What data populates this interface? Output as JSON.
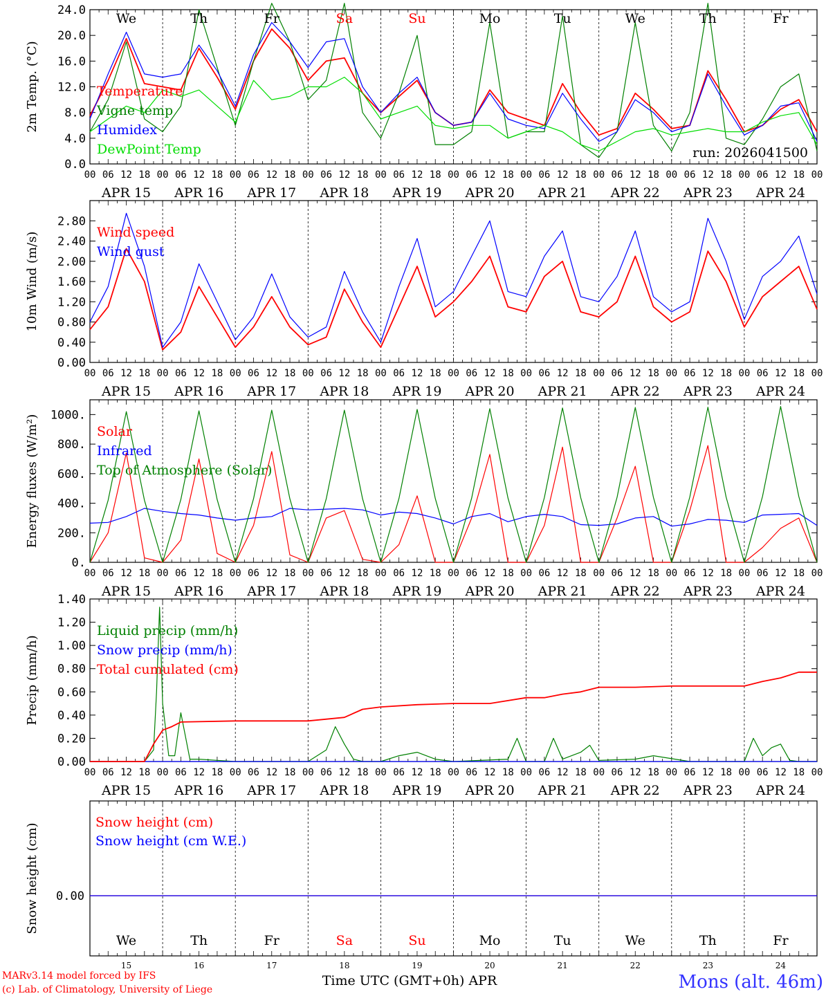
{
  "chart_data": [
    {
      "type": "line",
      "ylabel": "2m Temp. (°C)",
      "ylim": [
        0,
        24
      ],
      "yticks": [
        "0.0",
        "4.0",
        "8.0",
        "12.0",
        "16.0",
        "20.0",
        "24.0"
      ],
      "run_label": "run: 2026041500",
      "series": [
        {
          "name": "Temperature",
          "color": "#ff0000",
          "x": [
            0,
            6,
            12,
            18,
            24,
            30,
            36,
            42,
            48,
            54,
            60,
            66,
            72,
            78,
            84,
            90,
            96,
            102,
            108,
            114,
            120,
            126,
            132,
            138,
            144,
            150,
            156,
            162,
            168,
            174,
            180,
            186,
            192,
            198,
            204,
            210,
            216,
            222,
            228,
            234,
            240
          ],
          "values": [
            7.5,
            13,
            19.5,
            12.5,
            12,
            11.5,
            18,
            13.5,
            8.5,
            16,
            21,
            18,
            13,
            16,
            16.5,
            11,
            8,
            10.5,
            13,
            8,
            6,
            6.5,
            11.5,
            8,
            7,
            6,
            12.5,
            8,
            4.5,
            5.5,
            11,
            8.5,
            5.5,
            6,
            14.5,
            10,
            5,
            6,
            8.5,
            10,
            5
          ]
        },
        {
          "name": "Vigne temp",
          "color": "#008000",
          "x": [
            0,
            6,
            12,
            18,
            24,
            30,
            36,
            42,
            48,
            54,
            60,
            66,
            72,
            78,
            84,
            90,
            96,
            102,
            108,
            114,
            120,
            126,
            132,
            138,
            144,
            150,
            156,
            162,
            168,
            174,
            180,
            186,
            192,
            198,
            204,
            210,
            216,
            222,
            228,
            234,
            240
          ],
          "values": [
            5,
            10,
            19,
            7,
            5,
            9,
            24,
            15,
            6,
            16,
            25,
            19,
            10,
            13,
            25,
            8,
            4,
            11,
            20,
            3,
            3,
            5,
            22,
            4,
            5,
            5,
            23,
            3,
            1,
            5,
            22,
            6,
            2,
            8,
            25,
            4,
            3,
            7,
            12,
            14,
            2
          ]
        },
        {
          "name": "Humidex",
          "color": "#0000ff",
          "x": [
            0,
            6,
            12,
            18,
            24,
            30,
            36,
            42,
            48,
            54,
            60,
            66,
            72,
            78,
            84,
            90,
            96,
            102,
            108,
            114,
            120,
            126,
            132,
            138,
            144,
            150,
            156,
            162,
            168,
            174,
            180,
            186,
            192,
            198,
            204,
            210,
            216,
            222,
            228,
            234,
            240
          ],
          "values": [
            7,
            14,
            20.5,
            14,
            13.5,
            14,
            18.5,
            14.5,
            9,
            17,
            22,
            19,
            15,
            19,
            19.5,
            12,
            8,
            11,
            13.5,
            8,
            6,
            6.5,
            11,
            7,
            6,
            5.5,
            11,
            7,
            3.5,
            5,
            10,
            8,
            5,
            6,
            14,
            9,
            4.5,
            6,
            9,
            9.5,
            3.5
          ]
        },
        {
          "name": "DewPoint Temp",
          "color": "#00dd00",
          "x": [
            0,
            6,
            12,
            18,
            24,
            30,
            36,
            42,
            48,
            54,
            60,
            66,
            72,
            78,
            84,
            90,
            96,
            102,
            108,
            114,
            120,
            126,
            132,
            138,
            144,
            150,
            156,
            162,
            168,
            174,
            180,
            186,
            192,
            198,
            204,
            210,
            216,
            222,
            228,
            234,
            240
          ],
          "values": [
            5,
            7,
            9,
            8,
            11.5,
            10.5,
            11.5,
            9,
            6.5,
            13,
            10,
            10.5,
            12,
            12,
            13.5,
            11,
            7,
            8,
            9,
            6,
            5.5,
            6,
            6,
            4,
            5,
            6,
            5,
            3,
            2,
            3.5,
            5,
            5.5,
            4.5,
            5,
            5.5,
            5,
            5,
            6.5,
            7.5,
            8,
            3
          ]
        }
      ]
    },
    {
      "type": "line",
      "ylabel": "10m Wind (m/s)",
      "ylim": [
        0,
        3.2
      ],
      "yticks": [
        "0.00",
        "0.40",
        "0.80",
        "1.20",
        "1.60",
        "2.00",
        "2.40",
        "2.80"
      ],
      "series": [
        {
          "name": "Wind speed",
          "color": "#ff0000",
          "x": [
            0,
            6,
            12,
            18,
            24,
            30,
            36,
            42,
            48,
            54,
            60,
            66,
            72,
            78,
            84,
            90,
            96,
            102,
            108,
            114,
            120,
            126,
            132,
            138,
            144,
            150,
            156,
            162,
            168,
            174,
            180,
            186,
            192,
            198,
            204,
            210,
            216,
            222,
            228,
            234,
            240
          ],
          "values": [
            0.65,
            1.1,
            2.25,
            1.6,
            0.25,
            0.6,
            1.5,
            0.9,
            0.3,
            0.7,
            1.3,
            0.7,
            0.35,
            0.5,
            1.45,
            0.8,
            0.3,
            1.1,
            1.9,
            0.9,
            1.2,
            1.6,
            2.1,
            1.1,
            1.0,
            1.7,
            2.0,
            1.0,
            0.9,
            1.2,
            2.1,
            1.1,
            0.8,
            1.0,
            2.2,
            1.6,
            0.7,
            1.3,
            1.6,
            1.9,
            1.05
          ]
        },
        {
          "name": "Wind gust",
          "color": "#0000ff",
          "x": [
            0,
            6,
            12,
            18,
            24,
            30,
            36,
            42,
            48,
            54,
            60,
            66,
            72,
            78,
            84,
            90,
            96,
            102,
            108,
            114,
            120,
            126,
            132,
            138,
            144,
            150,
            156,
            162,
            168,
            174,
            180,
            186,
            192,
            198,
            204,
            210,
            216,
            222,
            228,
            234,
            240
          ],
          "values": [
            0.8,
            1.5,
            2.95,
            1.9,
            0.3,
            0.8,
            1.95,
            1.2,
            0.45,
            0.9,
            1.75,
            0.9,
            0.5,
            0.7,
            1.8,
            1.0,
            0.4,
            1.5,
            2.45,
            1.1,
            1.4,
            2.1,
            2.8,
            1.4,
            1.3,
            2.1,
            2.6,
            1.3,
            1.2,
            1.7,
            2.6,
            1.3,
            1.0,
            1.2,
            2.85,
            2.0,
            0.85,
            1.7,
            2.0,
            2.5,
            1.35
          ]
        }
      ]
    },
    {
      "type": "line",
      "ylabel": "Energy fluxes (W/m²)",
      "ylim": [
        0,
        1100
      ],
      "yticks": [
        "0.",
        "200.",
        "400.",
        "600.",
        "800.",
        "1000."
      ],
      "series": [
        {
          "name": "Solar",
          "color": "#ff0000",
          "x": [
            0,
            6,
            12,
            18,
            24,
            30,
            36,
            42,
            48,
            54,
            60,
            66,
            72,
            78,
            84,
            90,
            96,
            102,
            108,
            114,
            120,
            126,
            132,
            138,
            144,
            150,
            156,
            162,
            168,
            174,
            180,
            186,
            192,
            198,
            204,
            210,
            216,
            222,
            228,
            234,
            240
          ],
          "values": [
            0,
            200,
            740,
            30,
            0,
            150,
            700,
            60,
            0,
            250,
            750,
            50,
            0,
            300,
            350,
            20,
            0,
            120,
            450,
            0,
            0,
            300,
            730,
            0,
            0,
            250,
            780,
            0,
            0,
            300,
            650,
            0,
            0,
            350,
            790,
            0,
            0,
            100,
            230,
            300,
            0
          ]
        },
        {
          "name": "Infrared",
          "color": "#0000ff",
          "x": [
            0,
            6,
            12,
            18,
            24,
            30,
            36,
            42,
            48,
            54,
            60,
            66,
            72,
            78,
            84,
            90,
            96,
            102,
            108,
            114,
            120,
            126,
            132,
            138,
            144,
            150,
            156,
            162,
            168,
            174,
            180,
            186,
            192,
            198,
            204,
            210,
            216,
            222,
            228,
            234,
            240
          ],
          "values": [
            265,
            270,
            310,
            365,
            345,
            330,
            320,
            300,
            285,
            300,
            310,
            365,
            355,
            360,
            365,
            355,
            320,
            340,
            330,
            300,
            260,
            310,
            330,
            275,
            310,
            325,
            310,
            255,
            250,
            260,
            300,
            310,
            245,
            260,
            290,
            285,
            270,
            320,
            325,
            330,
            250
          ]
        },
        {
          "name": "Top of Atmosphere (Solar)",
          "color": "#008000",
          "x": [
            0,
            6,
            12,
            18,
            24,
            30,
            36,
            42,
            48,
            54,
            60,
            66,
            72,
            78,
            84,
            90,
            96,
            102,
            108,
            114,
            120,
            126,
            132,
            138,
            144,
            150,
            156,
            162,
            168,
            174,
            180,
            186,
            192,
            198,
            204,
            210,
            216,
            222,
            228,
            234,
            240
          ],
          "values": [
            0,
            420,
            1020,
            420,
            0,
            425,
            1025,
            425,
            0,
            430,
            1030,
            430,
            0,
            430,
            1030,
            430,
            0,
            432,
            1035,
            432,
            0,
            435,
            1040,
            435,
            0,
            438,
            1045,
            438,
            0,
            440,
            1048,
            440,
            0,
            442,
            1050,
            442,
            0,
            445,
            1055,
            445,
            0
          ]
        }
      ]
    },
    {
      "type": "line",
      "ylabel": "Precip (mm/h)",
      "ylim": [
        0,
        1.4
      ],
      "yticks": [
        "0.00",
        "0.20",
        "0.40",
        "0.60",
        "0.80",
        "1.00",
        "1.20",
        "1.40"
      ],
      "series": [
        {
          "name": "Liquid precip (mm/h)",
          "color": "#008000",
          "x": [
            0,
            18,
            21,
            22,
            23,
            24,
            26,
            28,
            30,
            33,
            36,
            42,
            48,
            72,
            78,
            81,
            84,
            87,
            90,
            96,
            102,
            108,
            114,
            120,
            138,
            141,
            144,
            150,
            153,
            156,
            162,
            165,
            168,
            180,
            186,
            198,
            204,
            210,
            216,
            219,
            222,
            225,
            228,
            231,
            234,
            240
          ],
          "values": [
            0,
            0,
            0.1,
            0.6,
            1.33,
            0.5,
            0.05,
            0.05,
            0.42,
            0.02,
            0.02,
            0.01,
            0,
            0,
            0.1,
            0.3,
            0.15,
            0.02,
            0,
            0,
            0.05,
            0.08,
            0.02,
            0,
            0.02,
            0.2,
            0,
            0,
            0.2,
            0.02,
            0.08,
            0.14,
            0.01,
            0.02,
            0.05,
            0,
            0,
            0,
            0,
            0.2,
            0.05,
            0.12,
            0.15,
            0.01,
            0,
            0
          ]
        },
        {
          "name": "Snow precip (mm/h)",
          "color": "#0000ff",
          "x": [
            0,
            240
          ],
          "values": [
            0,
            0
          ]
        },
        {
          "name": "Total cumulated (cm)",
          "color": "#ff0000",
          "x": [
            0,
            18,
            21,
            24,
            27,
            30,
            48,
            72,
            84,
            90,
            96,
            108,
            120,
            132,
            144,
            150,
            156,
            162,
            168,
            180,
            192,
            204,
            216,
            222,
            228,
            234,
            240
          ],
          "values": [
            0,
            0,
            0.15,
            0.27,
            0.3,
            0.34,
            0.35,
            0.35,
            0.38,
            0.45,
            0.47,
            0.49,
            0.5,
            0.5,
            0.55,
            0.55,
            0.58,
            0.6,
            0.64,
            0.64,
            0.65,
            0.65,
            0.65,
            0.69,
            0.72,
            0.77,
            0.77
          ]
        }
      ]
    },
    {
      "type": "line",
      "ylabel": "Snow height (cm)",
      "yticks": [
        "0.00"
      ],
      "series": [
        {
          "name": "Snow height (cm)",
          "color": "#ff0000",
          "x": [
            0,
            240
          ],
          "values": [
            0,
            0
          ]
        },
        {
          "name": "Snow height (cm W.E.)",
          "color": "#0000ff",
          "x": [
            0,
            240
          ],
          "values": [
            0,
            0
          ]
        }
      ]
    }
  ],
  "x_axis": {
    "hour_ticks": [
      "00",
      "06",
      "12",
      "18"
    ],
    "end_tick": "00",
    "dates": [
      "APR 15",
      "APR 16",
      "APR 17",
      "APR 18",
      "APR 19",
      "APR 20",
      "APR 21",
      "APR 22",
      "APR 23",
      "APR 24"
    ],
    "weekdays": [
      "We",
      "Th",
      "Fr",
      "Sa",
      "Su",
      "Mo",
      "Tu",
      "We",
      "Th",
      "Fr"
    ],
    "weekend_color": "#ff0000",
    "day_numbers": [
      "15",
      "16",
      "17",
      "18",
      "19",
      "20",
      "21",
      "22",
      "23",
      "24"
    ],
    "xlabel": "Time UTC (GMT+0h) APR"
  },
  "footer": {
    "credit_line1": "MARv3.14 model forced by IFS",
    "credit_line2": "(c) Lab. of Climatology, University of Liege",
    "location": "Mons (alt. 46m)"
  }
}
